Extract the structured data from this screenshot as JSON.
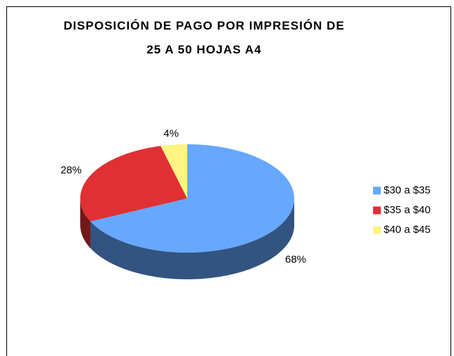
{
  "chart_data": {
    "type": "pie",
    "title": "DISPOSICIÓN DE PAGO POR IMPRESIÓN DE 25 A 50 HOJAS A4",
    "categories": [
      "$30 a $35",
      "$35 a $40",
      "$40 a $45"
    ],
    "values": [
      68,
      28,
      4
    ],
    "value_labels": [
      "68%",
      "28%",
      "4%"
    ],
    "colors": [
      "#66a8ff",
      "#e03034",
      "#fff383"
    ],
    "legend": "right"
  }
}
